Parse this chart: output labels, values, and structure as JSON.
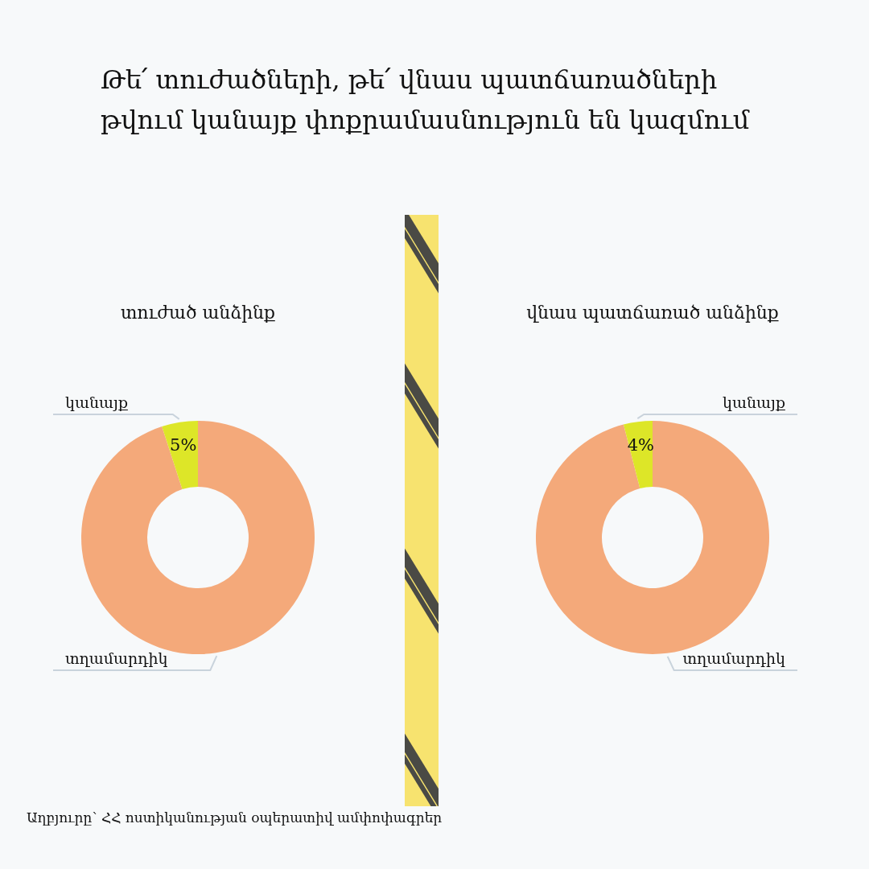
{
  "chart_data": [
    {
      "type": "other",
      "title": "Թե՛ տուժածների, թե՛ վնաս պատճառածների թվում կանայք փոքրամասնություն են կազմում",
      "annotations": [
        "Աղբյուրը՝ ՀՀ ոստիկանության օպերատիվ ամփոփագրեր"
      ]
    },
    {
      "type": "donut",
      "title": "տուժած անձինք",
      "categories": [
        "տղամարդիկ",
        "կանայք"
      ],
      "values": [
        95,
        5
      ],
      "colors": [
        "#f4a97a",
        "#dde628"
      ],
      "value_labels": [
        null,
        "5%"
      ]
    },
    {
      "type": "donut",
      "title": "վնաս պատճառած անձինք",
      "categories": [
        "տղամարդիկ",
        "կանայք"
      ],
      "values": [
        96,
        4
      ],
      "colors": [
        "#f4a97a",
        "#dde628"
      ],
      "value_labels": [
        null,
        "4%"
      ]
    }
  ]
}
